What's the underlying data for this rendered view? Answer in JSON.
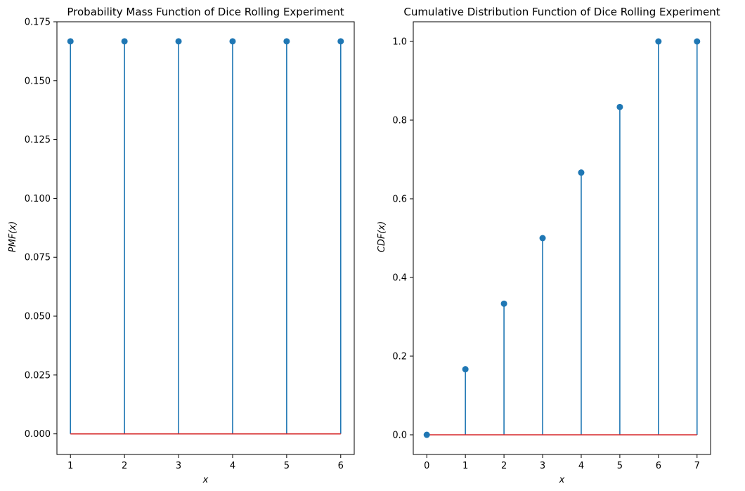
{
  "colors": {
    "stem": "#1f77b4",
    "baseline": "#d62728",
    "axes": "#000000"
  },
  "chart_data": [
    {
      "type": "stem",
      "title": "Probability Mass Function of Dice Rolling Experiment",
      "xlabel": "x",
      "ylabel": "PMF(x)",
      "xlim": [
        0.75,
        6.25
      ],
      "ylim": [
        -0.00875,
        0.175
      ],
      "xticks": [
        1,
        2,
        3,
        4,
        5,
        6
      ],
      "yticks": [
        0.0,
        0.025,
        0.05,
        0.075,
        0.1,
        0.125,
        0.15,
        0.175
      ],
      "ytick_decimals": 3,
      "baseline": 0,
      "grid": false,
      "x": [
        1,
        2,
        3,
        4,
        5,
        6
      ],
      "y": [
        0.1667,
        0.1667,
        0.1667,
        0.1667,
        0.1667,
        0.1667
      ]
    },
    {
      "type": "stem",
      "title": "Cumulative Distribution Function of Dice Rolling Experiment",
      "xlabel": "x",
      "ylabel": "CDF(x)",
      "xlim": [
        -0.35,
        7.35
      ],
      "ylim": [
        -0.05,
        1.05
      ],
      "xticks": [
        0,
        1,
        2,
        3,
        4,
        5,
        6,
        7
      ],
      "yticks": [
        0.0,
        0.2,
        0.4,
        0.6,
        0.8,
        1.0
      ],
      "ytick_decimals": 1,
      "baseline": 0,
      "grid": false,
      "x": [
        0,
        1,
        2,
        3,
        4,
        5,
        6,
        7
      ],
      "y": [
        0.0,
        0.1667,
        0.3333,
        0.5,
        0.6667,
        0.8333,
        1.0,
        1.0
      ]
    }
  ]
}
